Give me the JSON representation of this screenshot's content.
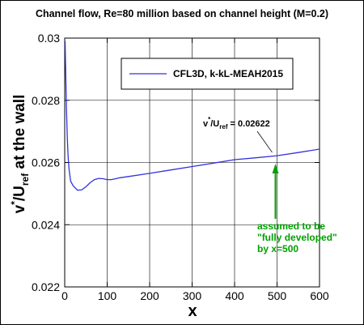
{
  "chart_data": {
    "type": "line",
    "title": "Channel flow, Re=80 million based on channel height (M=0.2)",
    "xlabel": "x",
    "ylabel": {
      "main": "v",
      "sup": "*",
      "mid": "/U",
      "sub": "ref",
      "rest": " at the wall"
    },
    "xlim": [
      0,
      600
    ],
    "ylim": [
      0.022,
      0.03
    ],
    "x_ticks": [
      "0",
      "100",
      "200",
      "300",
      "400",
      "500",
      "600"
    ],
    "y_ticks": [
      "0.022",
      "0.024",
      "0.026",
      "0.028",
      "0.03"
    ],
    "grid": true,
    "legend_position": "top-right",
    "series": [
      {
        "name": "CFL3D, k-kL-MEAH2015",
        "color": "#3333dd",
        "x": [
          1,
          2,
          4,
          6,
          8,
          10,
          14,
          20,
          30,
          40,
          50,
          60,
          70,
          80,
          90,
          100,
          110,
          120,
          130,
          150,
          200,
          250,
          300,
          350,
          400,
          450,
          500,
          550,
          600
        ],
        "y": [
          0.0299,
          0.0292,
          0.0278,
          0.0268,
          0.0262,
          0.0258,
          0.0254,
          0.02525,
          0.02511,
          0.02512,
          0.02522,
          0.02535,
          0.02545,
          0.02549,
          0.02548,
          0.02545,
          0.02545,
          0.02548,
          0.02551,
          0.02555,
          0.02565,
          0.02576,
          0.02587,
          0.02598,
          0.02609,
          0.02615,
          0.02622,
          0.02632,
          0.02643
        ]
      }
    ],
    "annotations": {
      "value_label": {
        "main": "v",
        "sup": "*",
        "mid": "/U",
        "sub": "ref",
        "rest": " = 0.02622"
      },
      "note_lines": [
        "assumed to be",
        "\"fully developed\"",
        "by x=500"
      ],
      "note_color": "#00a000",
      "point": {
        "x": 500,
        "y": 0.02622
      }
    }
  }
}
